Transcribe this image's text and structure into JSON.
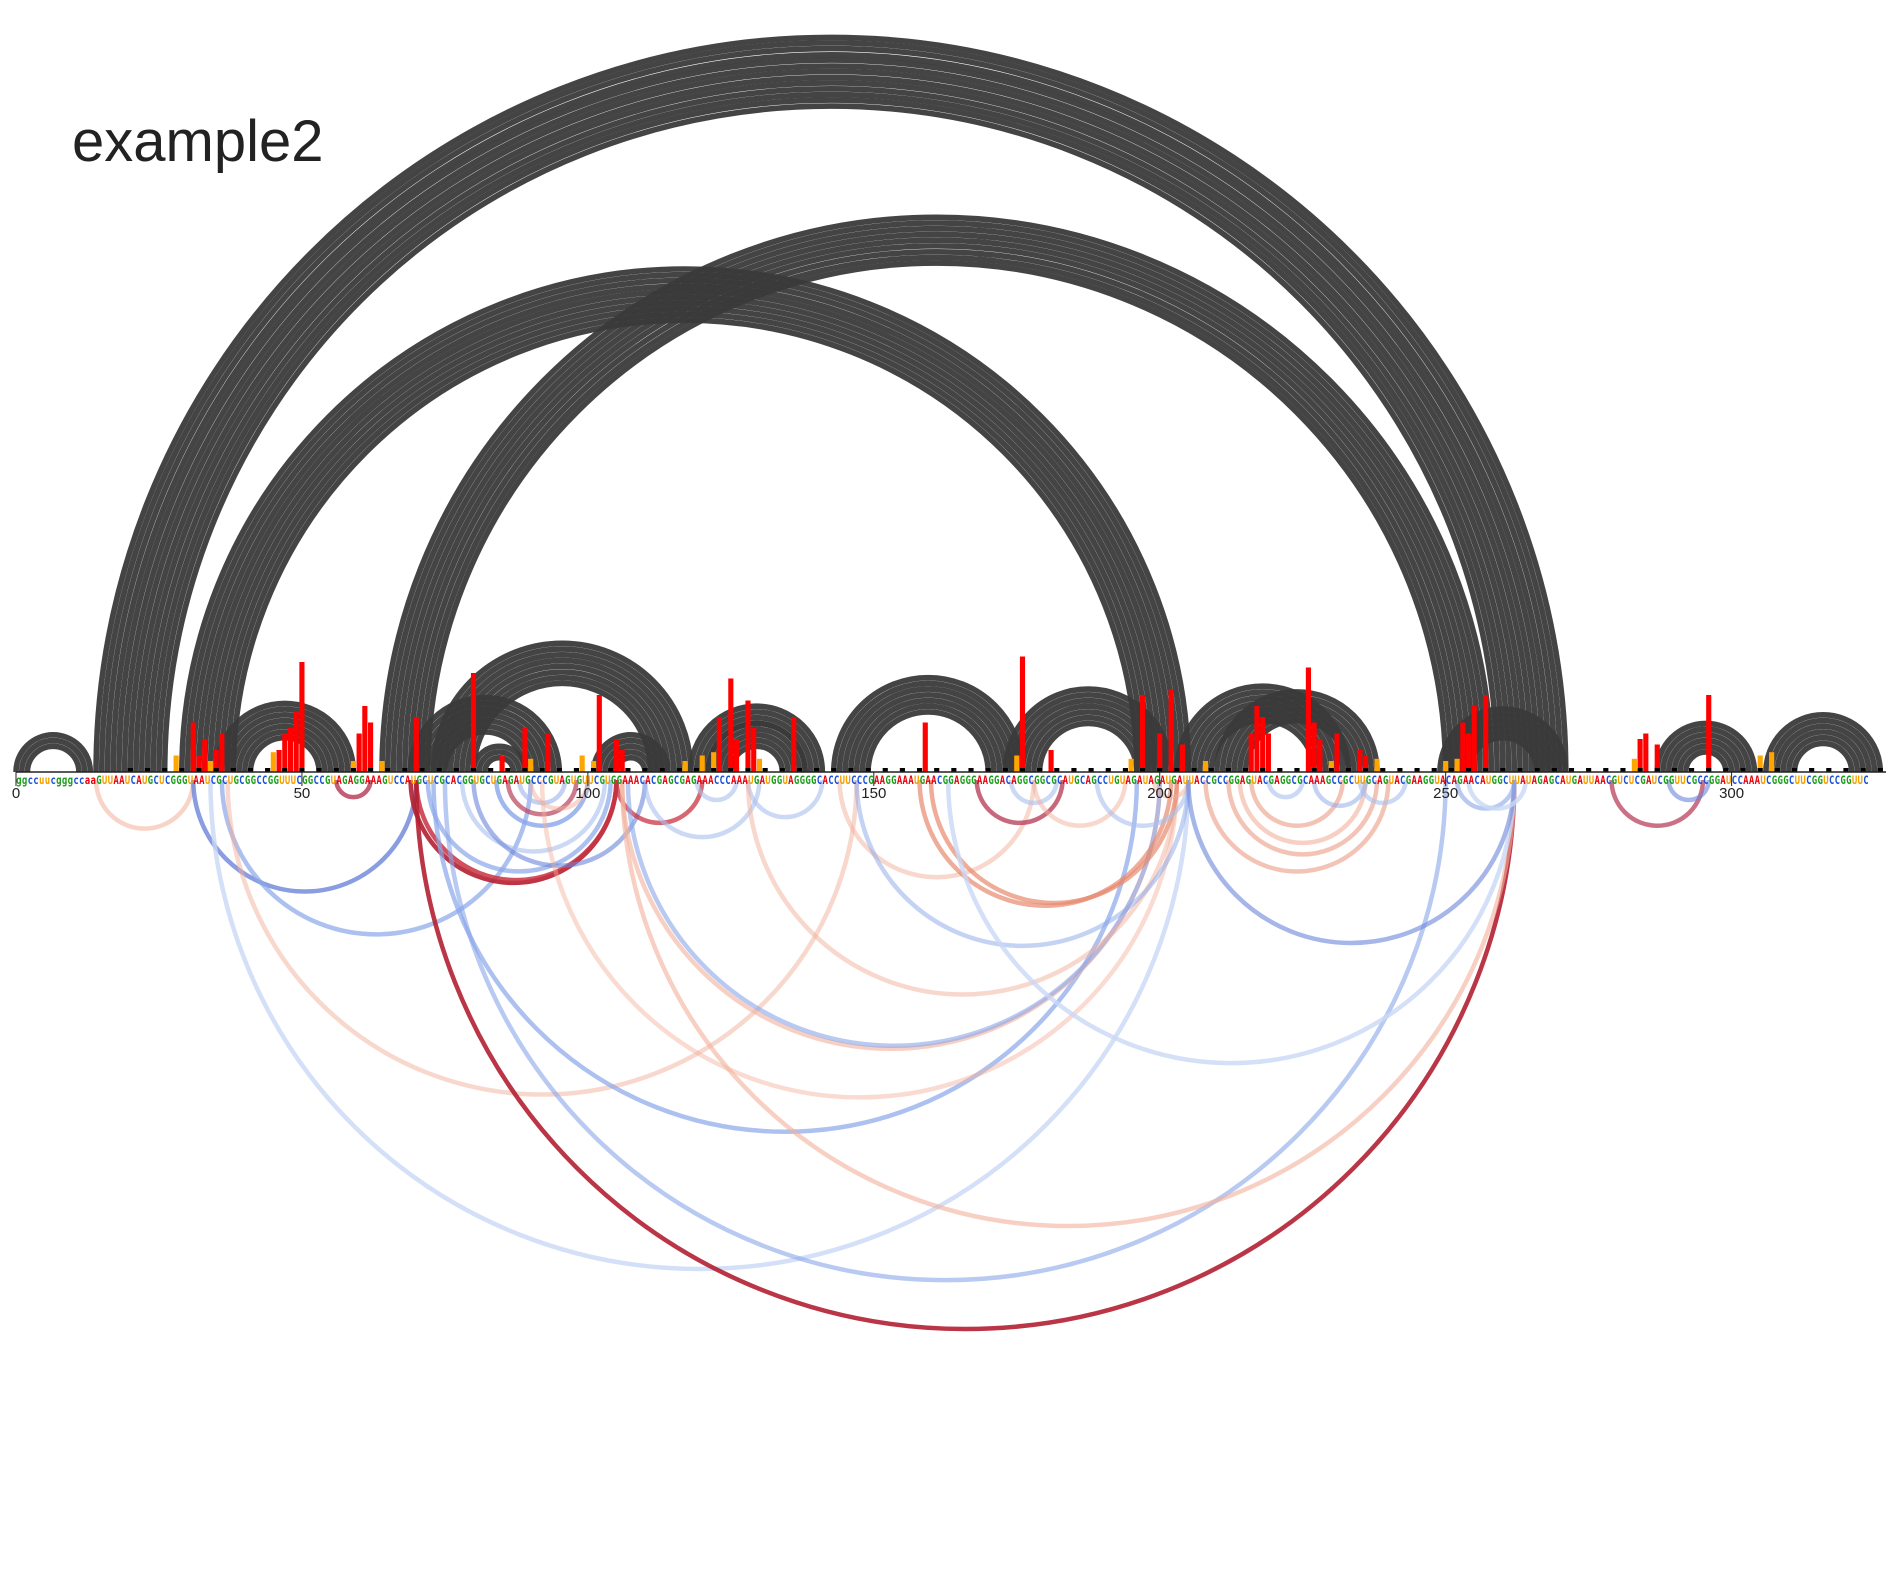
{
  "title": "example2",
  "axis": {
    "ticks": [
      0,
      50,
      100,
      150,
      200,
      250,
      300
    ],
    "length": 327
  },
  "sequence": "ggccuucgggccaaGUUAAUCAUGCUCGGGUAAUCGCUGCGGCCGGUUUCGGCCGUAGAGGAAAGUCCAUGCUCGCACGGUGCUGAGAUGCCCGUAGUGUUCGUGGAAACACGAGCGAGAAACCCAAAUGAUGGUAGGGGCACCUUCCCGAAGGAAAUGAACGGAGGGAAGGACAGGCGGCGCAUGCAGCCUGUAGAUAGAUGAUUACCGCCGGAGUACGAGGCGCAAAGCCGCUUGCAGUACGAAGGUACAGAACAUGGCUUAUAGAGCAUGAUUAACGUCUCGAUCGGUUCGCCGGAUCCAAAUCGGGCUUCGGUCCGGUUC",
  "colors": {
    "A": "#e8000b",
    "U": "#f5a000",
    "G": "#1a9e1a",
    "C": "#1a4fd8",
    "arc_top": "#3a3a3a",
    "bar_high": "#ff0000",
    "bar_mid": "#ffa500",
    "bar_low": "#000000"
  },
  "reactivity": [
    {
      "pos": 31,
      "v": 0.45
    },
    {
      "pos": 32,
      "v": 0.15
    },
    {
      "pos": 33,
      "v": 0.3
    },
    {
      "pos": 35,
      "v": 0.2
    },
    {
      "pos": 36,
      "v": 0.35
    },
    {
      "pos": 46,
      "v": 0.2
    },
    {
      "pos": 47,
      "v": 0.35
    },
    {
      "pos": 48,
      "v": 0.4
    },
    {
      "pos": 49,
      "v": 0.55
    },
    {
      "pos": 50,
      "v": 1.0
    },
    {
      "pos": 60,
      "v": 0.35
    },
    {
      "pos": 61,
      "v": 0.6
    },
    {
      "pos": 62,
      "v": 0.45
    },
    {
      "pos": 70,
      "v": 0.5
    },
    {
      "pos": 80,
      "v": 0.9
    },
    {
      "pos": 85,
      "v": 0.15
    },
    {
      "pos": 89,
      "v": 0.4
    },
    {
      "pos": 93,
      "v": 0.35
    },
    {
      "pos": 102,
      "v": 0.7
    },
    {
      "pos": 105,
      "v": 0.3
    },
    {
      "pos": 106,
      "v": 0.2
    },
    {
      "pos": 123,
      "v": 0.5
    },
    {
      "pos": 125,
      "v": 0.85
    },
    {
      "pos": 126,
      "v": 0.3
    },
    {
      "pos": 128,
      "v": 0.65
    },
    {
      "pos": 129,
      "v": 0.4
    },
    {
      "pos": 136,
      "v": 0.5
    },
    {
      "pos": 159,
      "v": 0.45
    },
    {
      "pos": 176,
      "v": 1.05
    },
    {
      "pos": 181,
      "v": 0.2
    },
    {
      "pos": 197,
      "v": 0.7
    },
    {
      "pos": 200,
      "v": 0.35
    },
    {
      "pos": 202,
      "v": 0.75
    },
    {
      "pos": 204,
      "v": 0.25
    },
    {
      "pos": 216,
      "v": 0.35
    },
    {
      "pos": 217,
      "v": 0.6
    },
    {
      "pos": 218,
      "v": 0.5
    },
    {
      "pos": 219,
      "v": 0.35
    },
    {
      "pos": 226,
      "v": 0.95
    },
    {
      "pos": 227,
      "v": 0.45
    },
    {
      "pos": 228,
      "v": 0.3
    },
    {
      "pos": 231,
      "v": 0.35
    },
    {
      "pos": 235,
      "v": 0.2
    },
    {
      "pos": 236,
      "v": 0.15
    },
    {
      "pos": 253,
      "v": 0.45
    },
    {
      "pos": 254,
      "v": 0.35
    },
    {
      "pos": 255,
      "v": 0.6
    },
    {
      "pos": 257,
      "v": 0.7
    },
    {
      "pos": 284,
      "v": 0.3
    },
    {
      "pos": 285,
      "v": 0.35
    },
    {
      "pos": 287,
      "v": 0.25
    },
    {
      "pos": 296,
      "v": 0.7
    }
  ],
  "orange_bars": [
    {
      "pos": 28,
      "v": 0.15
    },
    {
      "pos": 34,
      "v": 0.1
    },
    {
      "pos": 45,
      "v": 0.18
    },
    {
      "pos": 59,
      "v": 0.1
    },
    {
      "pos": 64,
      "v": 0.1
    },
    {
      "pos": 90,
      "v": 0.12
    },
    {
      "pos": 99,
      "v": 0.15
    },
    {
      "pos": 101,
      "v": 0.1
    },
    {
      "pos": 117,
      "v": 0.1
    },
    {
      "pos": 120,
      "v": 0.15
    },
    {
      "pos": 122,
      "v": 0.18
    },
    {
      "pos": 130,
      "v": 0.12
    },
    {
      "pos": 175,
      "v": 0.15
    },
    {
      "pos": 195,
      "v": 0.12
    },
    {
      "pos": 208,
      "v": 0.1
    },
    {
      "pos": 230,
      "v": 0.1
    },
    {
      "pos": 238,
      "v": 0.12
    },
    {
      "pos": 250,
      "v": 0.1
    },
    {
      "pos": 252,
      "v": 0.12
    },
    {
      "pos": 283,
      "v": 0.12
    },
    {
      "pos": 305,
      "v": 0.15
    },
    {
      "pos": 307,
      "v": 0.18
    }
  ],
  "top_arcs": [
    {
      "i": 14,
      "j": 271,
      "w": 13
    },
    {
      "i": 29,
      "j": 205,
      "w": 10
    },
    {
      "i": 64,
      "j": 258,
      "w": 9
    },
    {
      "i": 69,
      "j": 95,
      "w": 7
    },
    {
      "i": 73,
      "j": 118,
      "w": 8
    },
    {
      "i": 80,
      "j": 89,
      "w": 3
    },
    {
      "i": 101,
      "j": 114,
      "w": 5
    },
    {
      "i": 121,
      "j": 138,
      "w": 5
    },
    {
      "i": 143,
      "j": 176,
      "w": 7
    },
    {
      "i": 173,
      "j": 202,
      "w": 7
    },
    {
      "i": 203,
      "j": 233,
      "w": 7
    },
    {
      "i": 210,
      "j": 238,
      "w": 6
    },
    {
      "i": 249,
      "j": 271,
      "w": 6
    },
    {
      "i": 287,
      "j": 304,
      "w": 6
    },
    {
      "i": 306,
      "j": 326,
      "w": 6
    },
    {
      "i": 0,
      "j": 13,
      "w": 3
    },
    {
      "i": 35,
      "j": 59,
      "w": 7
    },
    {
      "i": 118,
      "j": 141,
      "w": 4
    }
  ],
  "bottom_arcs": [
    {
      "i": 14,
      "j": 31,
      "c": "#f2b09b",
      "o": 0.55
    },
    {
      "i": 31,
      "j": 70,
      "c": "#6b85d8",
      "o": 0.8
    },
    {
      "i": 34,
      "j": 205,
      "c": "#c9d8f5",
      "o": 0.8
    },
    {
      "i": 36,
      "j": 90,
      "c": "#8aa6ea",
      "o": 0.7
    },
    {
      "i": 37,
      "j": 147,
      "c": "#f2b09b",
      "o": 0.5
    },
    {
      "i": 56,
      "j": 62,
      "c": "#b9425c",
      "o": 0.85
    },
    {
      "i": 69,
      "j": 105,
      "c": "#b31f31",
      "o": 0.9
    },
    {
      "i": 70,
      "j": 105,
      "c": "#c83341",
      "o": 0.85
    },
    {
      "i": 70,
      "j": 262,
      "c": "#b31f31",
      "o": 0.9
    },
    {
      "i": 72,
      "j": 104,
      "c": "#8aa6ea",
      "o": 0.7
    },
    {
      "i": 73,
      "j": 196,
      "c": "#8aa6ea",
      "o": 0.7
    },
    {
      "i": 75,
      "j": 250,
      "c": "#8aa6ea",
      "o": 0.6
    },
    {
      "i": 78,
      "j": 103,
      "c": "#aabfee",
      "o": 0.6
    },
    {
      "i": 80,
      "j": 110,
      "c": "#6b85d8",
      "o": 0.6
    },
    {
      "i": 84,
      "j": 100,
      "c": "#8aa6ea",
      "o": 0.8
    },
    {
      "i": 86,
      "j": 98,
      "c": "#b9425c",
      "o": 0.7
    },
    {
      "i": 88,
      "j": 96,
      "c": "#aabfee",
      "o": 0.7
    },
    {
      "i": 90,
      "j": 100,
      "c": "#f2b09b",
      "o": 0.5
    },
    {
      "i": 92,
      "j": 203,
      "c": "#f2b09b",
      "o": 0.45
    },
    {
      "i": 105,
      "j": 120,
      "c": "#c83341",
      "o": 0.75
    },
    {
      "i": 106,
      "j": 200,
      "c": "#f2b09b",
      "o": 0.6
    },
    {
      "i": 106,
      "j": 262,
      "c": "#f2b09b",
      "o": 0.6
    },
    {
      "i": 107,
      "j": 200,
      "c": "#8aa6ea",
      "o": 0.6
    },
    {
      "i": 110,
      "j": 130,
      "c": "#aabfee",
      "o": 0.6
    },
    {
      "i": 119,
      "j": 126,
      "c": "#aabfee",
      "o": 0.6
    },
    {
      "i": 128,
      "j": 141,
      "c": "#aabfee",
      "o": 0.6
    },
    {
      "i": 128,
      "j": 203,
      "c": "#f2b09b",
      "o": 0.5
    },
    {
      "i": 144,
      "j": 178,
      "c": "#f2b09b",
      "o": 0.5
    },
    {
      "i": 147,
      "j": 205,
      "c": "#8aa6ea",
      "o": 0.5
    },
    {
      "i": 158,
      "j": 202,
      "c": "#e7896e",
      "o": 0.7
    },
    {
      "i": 160,
      "j": 203,
      "c": "#e7896e",
      "o": 0.7
    },
    {
      "i": 163,
      "j": 262,
      "c": "#c9d8f5",
      "o": 0.8
    },
    {
      "i": 168,
      "j": 183,
      "c": "#b9425c",
      "o": 0.8
    },
    {
      "i": 174,
      "j": 182,
      "c": "#aabfee",
      "o": 0.6
    },
    {
      "i": 178,
      "j": 194,
      "c": "#f2b09b",
      "o": 0.5
    },
    {
      "i": 189,
      "j": 205,
      "c": "#aabfee",
      "o": 0.6
    },
    {
      "i": 199,
      "j": 205,
      "c": "#f2b09b",
      "o": 0.5
    },
    {
      "i": 205,
      "j": 262,
      "c": "#6b85d8",
      "o": 0.6
    },
    {
      "i": 208,
      "j": 240,
      "c": "#e7896e",
      "o": 0.5
    },
    {
      "i": 212,
      "j": 238,
      "c": "#e7896e",
      "o": 0.5
    },
    {
      "i": 214,
      "j": 236,
      "c": "#f2b09b",
      "o": 0.6
    },
    {
      "i": 216,
      "j": 232,
      "c": "#e7896e",
      "o": 0.5
    },
    {
      "i": 219,
      "j": 225,
      "c": "#aabfee",
      "o": 0.6
    },
    {
      "i": 227,
      "j": 236,
      "c": "#8aa6ea",
      "o": 0.5
    },
    {
      "i": 235,
      "j": 243,
      "c": "#aabfee",
      "o": 0.6
    },
    {
      "i": 252,
      "j": 262,
      "c": "#8aa6ea",
      "o": 0.6
    },
    {
      "i": 254,
      "j": 264,
      "c": "#c9d8f5",
      "o": 0.8
    },
    {
      "i": 279,
      "j": 295,
      "c": "#b9425c",
      "o": 0.75
    },
    {
      "i": 289,
      "j": 296,
      "c": "#6b85d8",
      "o": 0.6
    }
  ]
}
